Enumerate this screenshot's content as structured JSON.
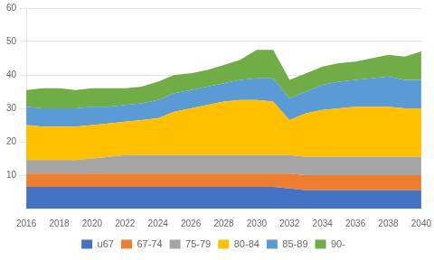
{
  "chart_data": {
    "type": "area",
    "stacked": true,
    "x": [
      2016,
      2017,
      2018,
      2019,
      2020,
      2021,
      2022,
      2023,
      2024,
      2025,
      2026,
      2027,
      2028,
      2029,
      2030,
      2031,
      2032,
      2033,
      2034,
      2035,
      2036,
      2037,
      2038,
      2039,
      2040
    ],
    "series": [
      {
        "name": "u67",
        "color": "#4472c4",
        "values": [
          6.5,
          6.5,
          6.5,
          6.5,
          6.5,
          6.5,
          6.5,
          6.5,
          6.5,
          6.5,
          6.5,
          6.5,
          6.5,
          6.5,
          6.5,
          6.5,
          6.0,
          5.5,
          5.5,
          5.5,
          5.5,
          5.5,
          5.5,
          5.5,
          5.5
        ]
      },
      {
        "name": "67-74",
        "color": "#ed7d31",
        "values": [
          4.0,
          4.0,
          4.0,
          4.0,
          4.0,
          4.0,
          4.0,
          4.0,
          4.0,
          4.0,
          4.0,
          4.0,
          4.0,
          4.0,
          4.0,
          4.0,
          4.5,
          4.5,
          4.5,
          4.5,
          4.5,
          4.5,
          4.5,
          4.5,
          4.5
        ]
      },
      {
        "name": "75-79",
        "color": "#a5a5a5",
        "values": [
          4.0,
          4.0,
          4.0,
          4.0,
          4.5,
          5.0,
          5.5,
          5.5,
          5.5,
          5.5,
          5.5,
          5.5,
          5.5,
          5.5,
          5.5,
          5.5,
          5.5,
          5.5,
          5.5,
          5.5,
          5.5,
          5.5,
          5.5,
          5.5,
          5.5
        ]
      },
      {
        "name": "80-84",
        "color": "#ffc000",
        "values": [
          10.5,
          10.0,
          10.0,
          10.0,
          10.0,
          10.0,
          10.0,
          10.5,
          11.0,
          13.0,
          14.0,
          15.0,
          16.0,
          16.5,
          16.5,
          16.0,
          10.5,
          13.0,
          14.0,
          14.5,
          15.0,
          15.0,
          15.0,
          14.5,
          14.5
        ]
      },
      {
        "name": "85-89",
        "color": "#5b9bd5",
        "values": [
          5.5,
          5.5,
          5.5,
          5.5,
          5.5,
          5.0,
          5.0,
          5.0,
          5.5,
          5.5,
          5.5,
          5.5,
          5.5,
          6.0,
          6.5,
          7.0,
          6.5,
          6.5,
          7.5,
          8.0,
          8.0,
          8.5,
          9.0,
          8.5,
          8.5
        ]
      },
      {
        "name": "90-",
        "color": "#70ad47",
        "values": [
          5.0,
          6.0,
          6.0,
          5.5,
          5.5,
          5.5,
          5.0,
          5.0,
          5.5,
          5.5,
          5.0,
          5.0,
          5.5,
          6.0,
          8.5,
          8.5,
          5.5,
          5.5,
          5.5,
          5.5,
          5.5,
          6.0,
          6.5,
          7.0,
          8.5
        ]
      }
    ],
    "xlim": [
      2016,
      2040
    ],
    "xticks": [
      2016,
      2018,
      2020,
      2022,
      2024,
      2026,
      2028,
      2030,
      2032,
      2034,
      2036,
      2038,
      2040
    ],
    "ylim": [
      0,
      60
    ],
    "yticks": [
      10,
      20,
      30,
      40,
      50,
      60
    ],
    "grid": "y",
    "legend": "bottom"
  }
}
